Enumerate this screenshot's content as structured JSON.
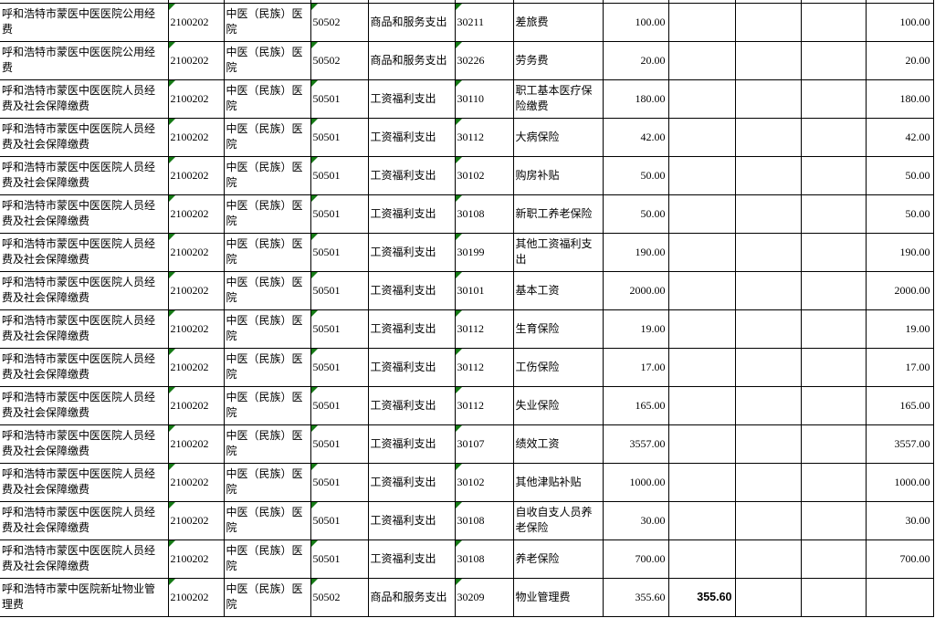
{
  "colors": {
    "grid_line": "#000000",
    "background": "#ffffff",
    "text": "#000000",
    "error_indicator_green": "#157a15"
  },
  "table": {
    "marker_columns": [
      1,
      3,
      5
    ],
    "column_roles": [
      "project-name",
      "project-code",
      "unit-name",
      "econ-class-code",
      "econ-class-name",
      "econ-item-code",
      "econ-item-name",
      "amount",
      "amount-2",
      "blank-1",
      "blank-2",
      "amount-total"
    ],
    "rows": [
      {
        "c": [
          "呼和浩特市蒙医中医医院公用经费",
          "2100202",
          "中医（民族）医院",
          "50502",
          "商品和服务支出",
          "30211",
          "差旅费",
          "100.00",
          "",
          "",
          "",
          "100.00"
        ]
      },
      {
        "c": [
          "呼和浩特市蒙医中医医院公用经费",
          "2100202",
          "中医（民族）医院",
          "50502",
          "商品和服务支出",
          "30226",
          "劳务费",
          "20.00",
          "",
          "",
          "",
          "20.00"
        ]
      },
      {
        "c": [
          "呼和浩特市蒙医中医医院人员经费及社会保障缴费",
          "2100202",
          "中医（民族）医院",
          "50501",
          "工资福利支出",
          "30110",
          "职工基本医疗保险缴费",
          "180.00",
          "",
          "",
          "",
          "180.00"
        ]
      },
      {
        "c": [
          "呼和浩特市蒙医中医医院人员经费及社会保障缴费",
          "2100202",
          "中医（民族）医院",
          "50501",
          "工资福利支出",
          "30112",
          "大病保险",
          "42.00",
          "",
          "",
          "",
          "42.00"
        ]
      },
      {
        "c": [
          "呼和浩特市蒙医中医医院人员经费及社会保障缴费",
          "2100202",
          "中医（民族）医院",
          "50501",
          "工资福利支出",
          "30102",
          "购房补贴",
          "50.00",
          "",
          "",
          "",
          "50.00"
        ]
      },
      {
        "c": [
          "呼和浩特市蒙医中医医院人员经费及社会保障缴费",
          "2100202",
          "中医（民族）医院",
          "50501",
          "工资福利支出",
          "30108",
          "新职工养老保险",
          "50.00",
          "",
          "",
          "",
          "50.00"
        ]
      },
      {
        "c": [
          "呼和浩特市蒙医中医医院人员经费及社会保障缴费",
          "2100202",
          "中医（民族）医院",
          "50501",
          "工资福利支出",
          "30199",
          "其他工资福利支出",
          "190.00",
          "",
          "",
          "",
          "190.00"
        ]
      },
      {
        "c": [
          "呼和浩特市蒙医中医医院人员经费及社会保障缴费",
          "2100202",
          "中医（民族）医院",
          "50501",
          "工资福利支出",
          "30101",
          "基本工资",
          "2000.00",
          "",
          "",
          "",
          "2000.00"
        ]
      },
      {
        "c": [
          "呼和浩特市蒙医中医医院人员经费及社会保障缴费",
          "2100202",
          "中医（民族）医院",
          "50501",
          "工资福利支出",
          "30112",
          "生育保险",
          "19.00",
          "",
          "",
          "",
          "19.00"
        ]
      },
      {
        "c": [
          "呼和浩特市蒙医中医医院人员经费及社会保障缴费",
          "2100202",
          "中医（民族）医院",
          "50501",
          "工资福利支出",
          "30112",
          "工伤保险",
          "17.00",
          "",
          "",
          "",
          "17.00"
        ]
      },
      {
        "c": [
          "呼和浩特市蒙医中医医院人员经费及社会保障缴费",
          "2100202",
          "中医（民族）医院",
          "50501",
          "工资福利支出",
          "30112",
          "失业保险",
          "165.00",
          "",
          "",
          "",
          "165.00"
        ]
      },
      {
        "c": [
          "呼和浩特市蒙医中医医院人员经费及社会保障缴费",
          "2100202",
          "中医（民族）医院",
          "50501",
          "工资福利支出",
          "30107",
          "绩效工资",
          "3557.00",
          "",
          "",
          "",
          "3557.00"
        ]
      },
      {
        "c": [
          "呼和浩特市蒙医中医医院人员经费及社会保障缴费",
          "2100202",
          "中医（民族）医院",
          "50501",
          "工资福利支出",
          "30102",
          "其他津贴补贴",
          "1000.00",
          "",
          "",
          "",
          "1000.00"
        ]
      },
      {
        "c": [
          "呼和浩特市蒙医中医医院人员经费及社会保障缴费",
          "2100202",
          "中医（民族）医院",
          "50501",
          "工资福利支出",
          "30108",
          "自收自支人员养老保险",
          "30.00",
          "",
          "",
          "",
          "30.00"
        ]
      },
      {
        "c": [
          "呼和浩特市蒙医中医医院人员经费及社会保障缴费",
          "2100202",
          "中医（民族）医院",
          "50501",
          "工资福利支出",
          "30108",
          "养老保险",
          "700.00",
          "",
          "",
          "",
          "700.00"
        ]
      },
      {
        "c": [
          "呼和浩特市蒙中医院新址物业管理费",
          "2100202",
          "中医（民族）医院",
          "50502",
          "商品和服务支出",
          "30209",
          "物业管理费",
          "355.60",
          "355.60",
          "",
          "",
          ""
        ],
        "bold": [
          8
        ]
      }
    ]
  }
}
